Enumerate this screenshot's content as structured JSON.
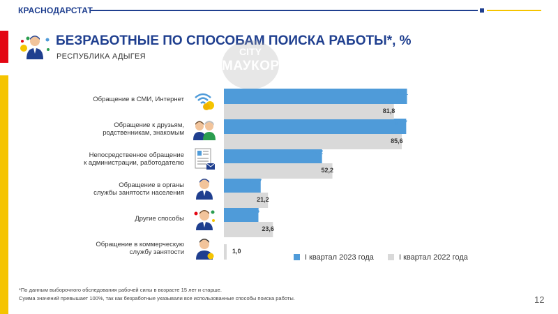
{
  "header": {
    "brand": "КРАСНОДАРСТАТ",
    "page_number": "12"
  },
  "title": "БЕЗРАБОТНЫЕ ПО СПОСОБАМ ПОИСКА РАБОТЫ*, %",
  "subtitle": "РЕСПУБЛИКА АДЫГЕЯ",
  "watermark": {
    "line1": "CITY",
    "line2": "МАУКОР"
  },
  "colors": {
    "brand_blue": "#1f3f8f",
    "series_2023": "#4f9bd9",
    "series_2022": "#d9d9d9",
    "accent_red": "#e30613",
    "accent_yellow": "#f5c400"
  },
  "chart_data": {
    "type": "bar",
    "orientation": "horizontal",
    "categories": [
      [
        "Обращение в СМИ, Интернет"
      ],
      [
        "Обращение к друзьям,",
        "родственникам, знакомым"
      ],
      [
        "Непосредственное обращение",
        "к администрации, работодателю"
      ],
      [
        "Обращение в органы",
        "службы занятости населения"
      ],
      [
        "Другие способы"
      ],
      [
        "Обращение в коммерческую",
        "службу занятости"
      ]
    ],
    "category_icons": [
      "wifi-coins-icon",
      "friends-icon",
      "resume-icon",
      "person-icon",
      "person-icon",
      "person-icon"
    ],
    "series": [
      {
        "name": "I квартал 2023 года",
        "values": [
          88.1,
          87.7,
          47.2,
          17.7,
          16.6,
          null
        ],
        "labels": [
          "88,1",
          "87,7",
          "47,2",
          "17,7",
          "16,6",
          ""
        ]
      },
      {
        "name": "I квартал 2022 года",
        "values": [
          81.8,
          85.6,
          52.2,
          21.2,
          23.6,
          1.0
        ],
        "labels": [
          "81,8",
          "85,6",
          "52,2",
          "21,2",
          "23,6",
          "1,0"
        ]
      }
    ],
    "legend_position": "bottom-right",
    "grid": false
  },
  "footnotes": [
    "*По данным выборочного обследования рабочей силы в возрасте 15 лет и старше.",
    "Сумма значений превышает 100%, так как безработные указывали все использованные способы поиска работы."
  ]
}
